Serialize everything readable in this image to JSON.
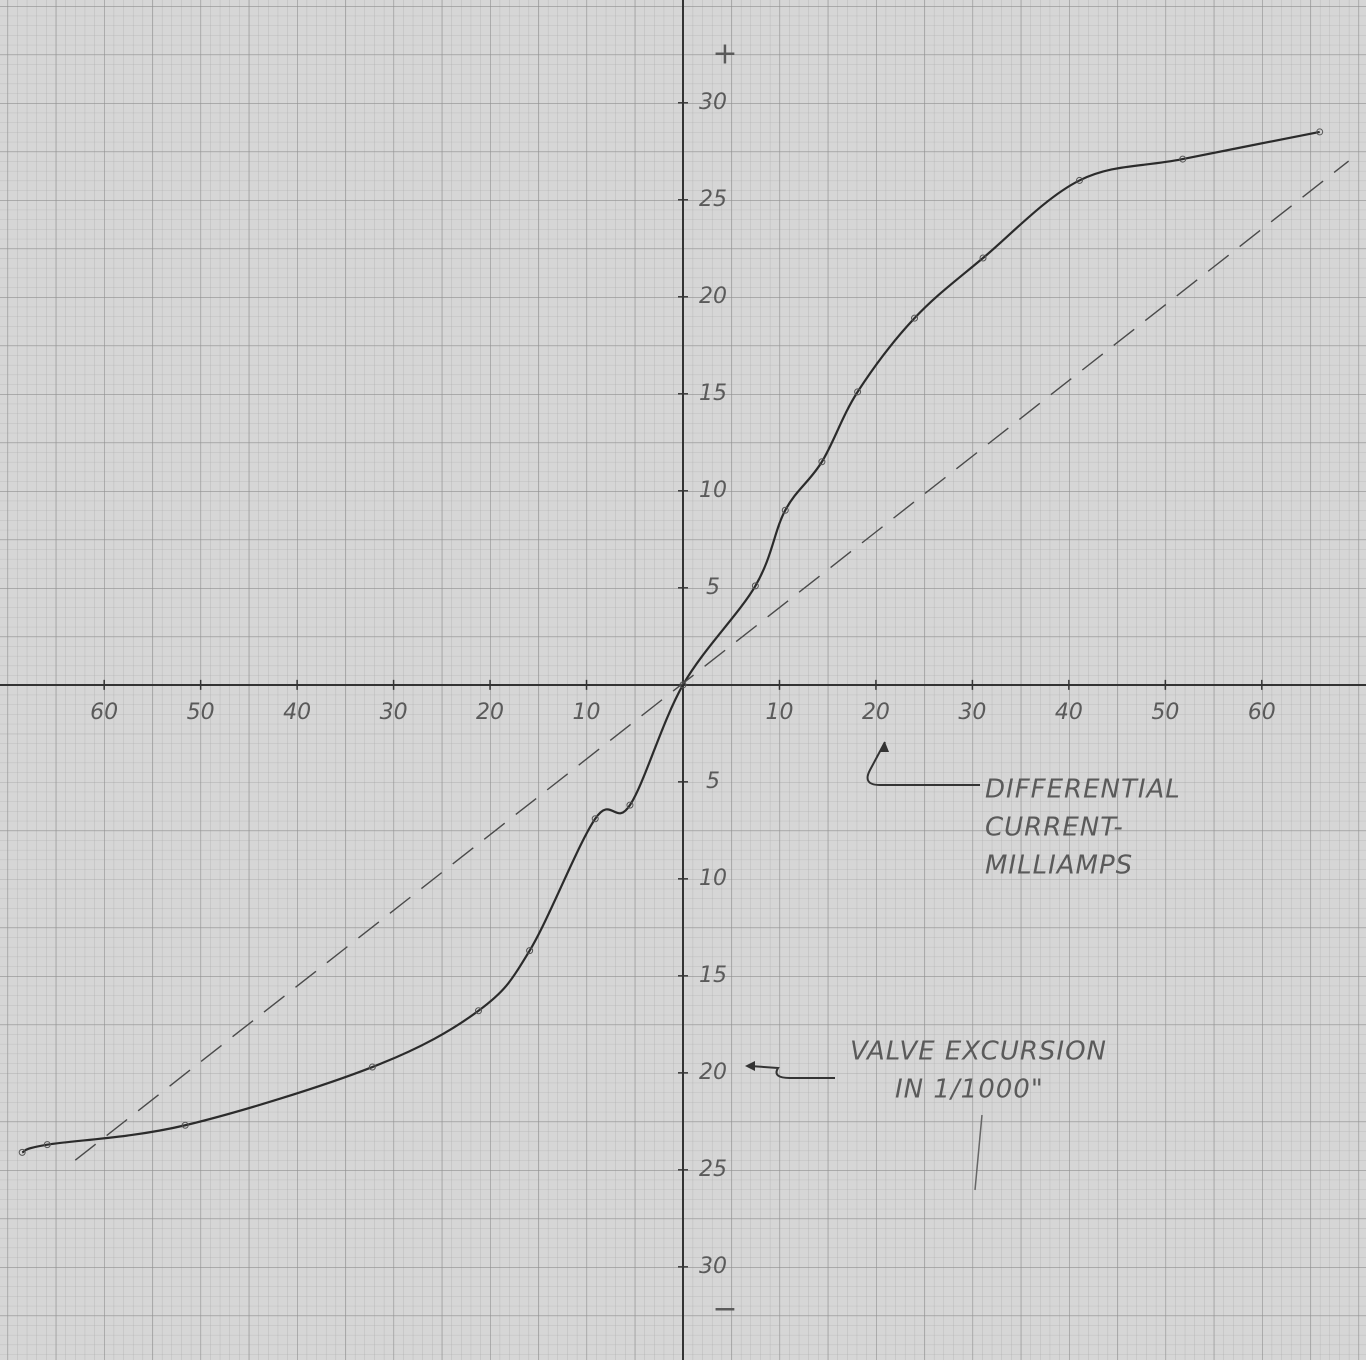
{
  "chart_data": {
    "type": "line",
    "xlim": [
      -70.8,
      70.8
    ],
    "ylim": [
      -34.8,
      35.3
    ],
    "xticks": [
      {
        "value": -60,
        "label": "60"
      },
      {
        "value": -50,
        "label": "50"
      },
      {
        "value": -40,
        "label": "40"
      },
      {
        "value": -30,
        "label": "30"
      },
      {
        "value": -20,
        "label": "20"
      },
      {
        "value": -10,
        "label": "10"
      },
      10,
      20,
      30,
      40,
      50,
      60
    ],
    "yticks": [
      30,
      25,
      20,
      15,
      10,
      5,
      {
        "value": -5,
        "label": "5"
      },
      {
        "value": -10,
        "label": "10"
      },
      {
        "value": -15,
        "label": "15"
      },
      {
        "value": -20,
        "label": "20"
      },
      {
        "value": -25,
        "label": "25"
      },
      {
        "value": -30,
        "label": "30"
      }
    ],
    "y_axis_end_labels": [
      "+",
      "−"
    ],
    "series": [
      {
        "color": "#2b2b2b",
        "dashed": false,
        "markers": true,
        "x": [
          -68.5,
          -65.9,
          -51.6,
          -32.2,
          -21.2,
          -15.9,
          -9.1,
          -5.5,
          0,
          7.5,
          10.6,
          14.4,
          18.1,
          24,
          31.1,
          41.1,
          51.8,
          66
        ],
        "values": [
          -24.1,
          -23.7,
          -22.7,
          -19.7,
          -16.8,
          -13.7,
          -6.9,
          -6.2,
          0,
          5.1,
          9.0,
          11.5,
          15.1,
          18.9,
          22.0,
          26.0,
          27.1,
          28.5
        ]
      },
      {
        "color": "#4a4a4a",
        "dashed": true,
        "markers": false,
        "x": [
          -63,
          69
        ],
        "values": [
          -24.5,
          27
        ]
      }
    ],
    "annotations": [
      {
        "lines": [
          "DIFFERENTIAL",
          "CURRENT-",
          "MILLIAMPS"
        ]
      },
      {
        "lines": [
          "VALVE EXCURSION",
          "IN 1/1000\""
        ]
      }
    ]
  }
}
